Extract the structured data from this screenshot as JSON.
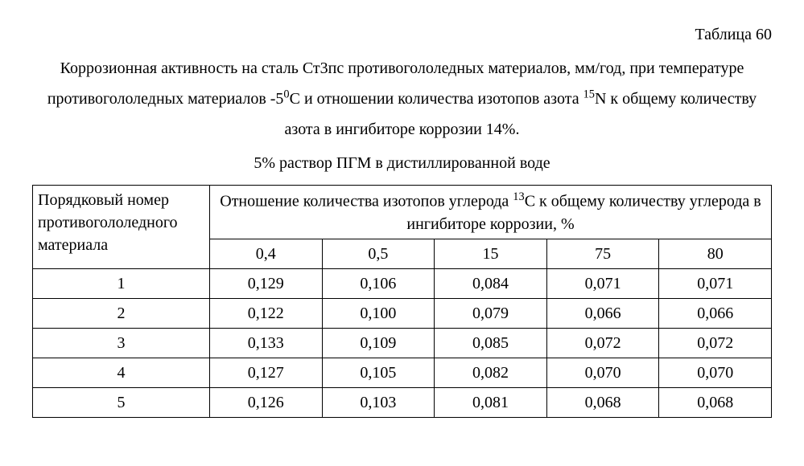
{
  "table_label": "Таблица 60",
  "caption_html": "Коррозионная активность на сталь Ст3пс противогололедных материалов, мм/год, при температуре противогололедных материалов -5<sup>0</sup>С и отношении количества изотопов азота <sup>15</sup>N  к общему количеству азота в ингибиторе коррозии 14%.",
  "subcaption": "5% раствор ПГМ в дистиллированной воде",
  "row_header": "Порядковый номер противогололедного материала",
  "group_header_html": "Отношение количества изотопов углерода <sup>13</sup>С к общему количеству углерода в ингибиторе коррозии, %",
  "columns": [
    "0,4",
    "0,5",
    "15",
    "75",
    "80"
  ],
  "rows": [
    {
      "id": "1",
      "values": [
        "0,129",
        "0,106",
        "0,084",
        "0,071",
        "0,071"
      ]
    },
    {
      "id": "2",
      "values": [
        "0,122",
        "0,100",
        "0,079",
        "0,066",
        "0,066"
      ]
    },
    {
      "id": "3",
      "values": [
        "0,133",
        "0,109",
        "0,085",
        "0,072",
        "0,072"
      ]
    },
    {
      "id": "4",
      "values": [
        "0,127",
        "0,105",
        "0,082",
        "0,070",
        "0,070"
      ]
    },
    {
      "id": "5",
      "values": [
        "0,126",
        "0,103",
        "0,081",
        "0,068",
        "0,068"
      ]
    }
  ],
  "style": {
    "font_family": "Times New Roman",
    "body_fontsize_pt": 15,
    "border_color": "#000000",
    "background_color": "#ffffff",
    "text_color": "#000000"
  }
}
